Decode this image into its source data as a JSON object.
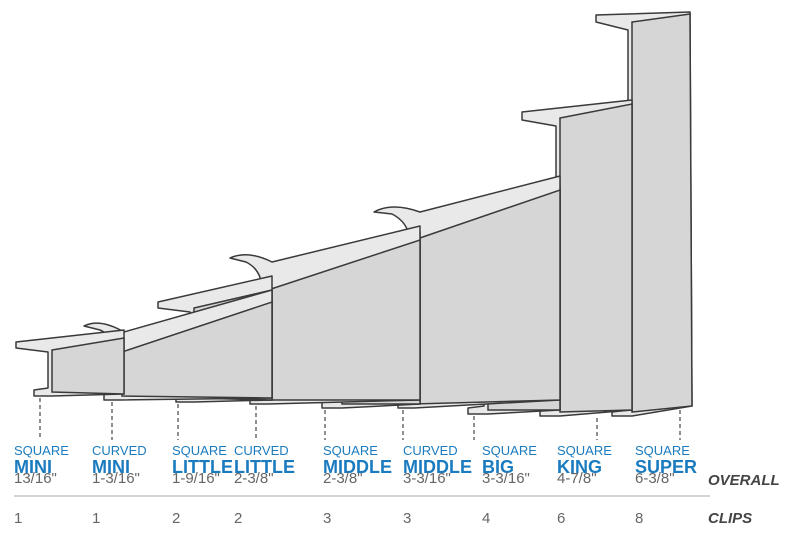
{
  "products": [
    {
      "style": "SQUARE",
      "size": "MINI",
      "overall": "13/16\"",
      "clips": 1
    },
    {
      "style": "CURVED",
      "size": "MINI",
      "overall": "1-3/16\"",
      "clips": 1
    },
    {
      "style": "SQUARE",
      "size": "LITTLE",
      "overall": "1-9/16\"",
      "clips": 2
    },
    {
      "style": "CURVED",
      "size": "LITTLE",
      "overall": "2-3/8\"",
      "clips": 2
    },
    {
      "style": "SQUARE",
      "size": "MIDDLE",
      "overall": "2-3/8\"",
      "clips": 3
    },
    {
      "style": "CURVED",
      "size": "MIDDLE",
      "overall": "3-3/16\"",
      "clips": 3
    },
    {
      "style": "SQUARE",
      "size": "BIG",
      "overall": "3-3/16\"",
      "clips": 4
    },
    {
      "style": "SQUARE",
      "size": "KING",
      "overall": "4-7/8\"",
      "clips": 6
    },
    {
      "style": "SQUARE",
      "size": "SUPER",
      "overall": "6-3/8\"",
      "clips": 8
    }
  ],
  "row_labels": {
    "overall": "OVERALL",
    "clips": "CLIPS"
  }
}
